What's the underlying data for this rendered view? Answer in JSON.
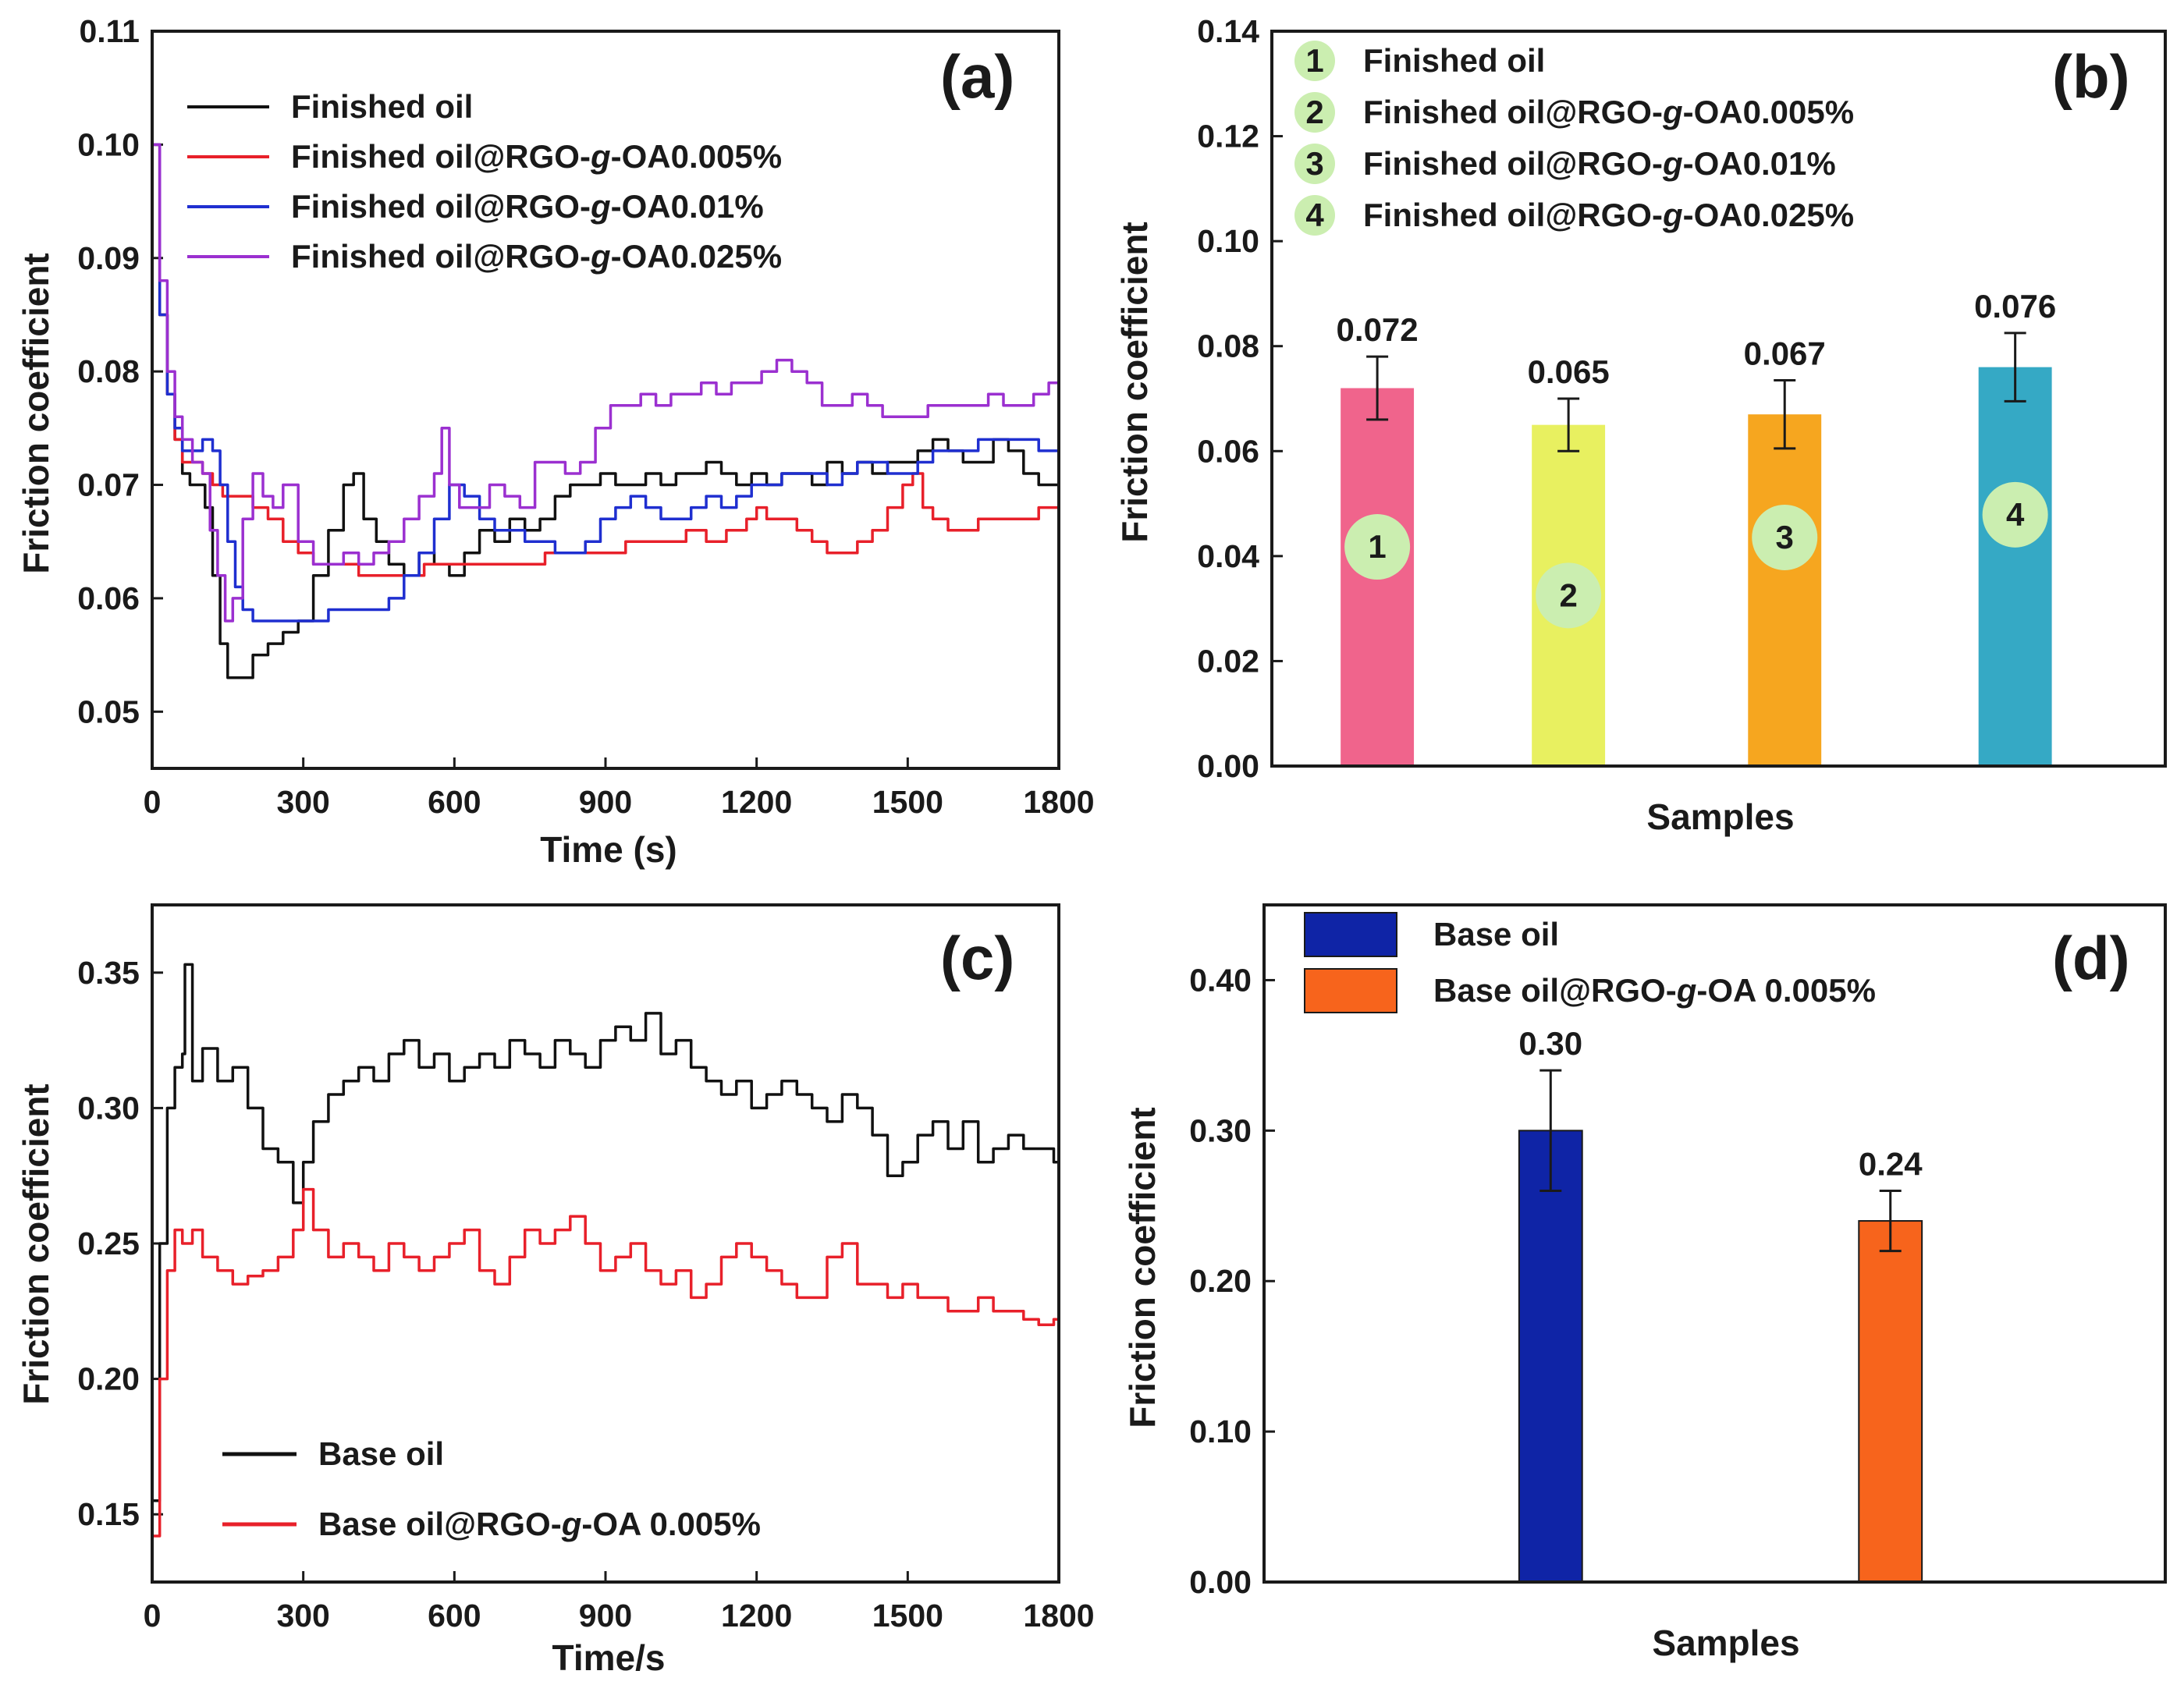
{
  "chart_data": [
    {
      "id": "a",
      "type": "line",
      "panel_label": "(a)",
      "xlabel": "Time (s)",
      "ylabel": "Friction coefficient",
      "xlim": [
        0,
        1800
      ],
      "ylim": [
        0.045,
        0.11
      ],
      "xticks": [
        "0",
        "300",
        "600",
        "900",
        "1200",
        "1500",
        "1800"
      ],
      "yticks": [
        "0.05",
        "0.06",
        "0.07",
        "0.08",
        "0.09",
        "0.10",
        "0.11"
      ],
      "legend_position": "top-left",
      "series": [
        {
          "name": "Finished oil",
          "color": "#111111",
          "x": [
            0,
            15,
            30,
            45,
            60,
            75,
            90,
            105,
            120,
            135,
            150,
            175,
            200,
            230,
            260,
            290,
            320,
            350,
            380,
            400,
            420,
            445,
            470,
            500,
            530,
            560,
            590,
            620,
            650,
            680,
            710,
            740,
            770,
            800,
            830,
            860,
            890,
            920,
            950,
            980,
            1010,
            1040,
            1070,
            1100,
            1130,
            1160,
            1190,
            1220,
            1250,
            1280,
            1310,
            1340,
            1370,
            1400,
            1430,
            1460,
            1490,
            1520,
            1550,
            1580,
            1610,
            1640,
            1670,
            1700,
            1730,
            1760,
            1790,
            1800
          ],
          "y": [
            0.1,
            0.085,
            0.078,
            0.074,
            0.071,
            0.07,
            0.07,
            0.068,
            0.062,
            0.056,
            0.053,
            0.053,
            0.055,
            0.056,
            0.057,
            0.058,
            0.062,
            0.066,
            0.07,
            0.071,
            0.067,
            0.065,
            0.063,
            0.062,
            0.064,
            0.063,
            0.062,
            0.064,
            0.066,
            0.065,
            0.067,
            0.066,
            0.067,
            0.069,
            0.07,
            0.07,
            0.071,
            0.07,
            0.07,
            0.071,
            0.07,
            0.071,
            0.071,
            0.072,
            0.071,
            0.07,
            0.071,
            0.07,
            0.071,
            0.071,
            0.07,
            0.072,
            0.071,
            0.072,
            0.071,
            0.072,
            0.072,
            0.073,
            0.074,
            0.073,
            0.072,
            0.072,
            0.074,
            0.073,
            0.071,
            0.07,
            0.07,
            0.07
          ]
        },
        {
          "name": "Finished oil@RGO-g-OA0.005%",
          "color": "#e8202a",
          "x": [
            0,
            15,
            30,
            45,
            60,
            80,
            100,
            120,
            140,
            160,
            180,
            200,
            230,
            260,
            290,
            320,
            350,
            380,
            410,
            440,
            470,
            500,
            540,
            580,
            620,
            660,
            700,
            740,
            780,
            820,
            860,
            900,
            940,
            980,
            1020,
            1060,
            1100,
            1140,
            1180,
            1200,
            1220,
            1250,
            1280,
            1310,
            1340,
            1370,
            1400,
            1430,
            1460,
            1490,
            1510,
            1530,
            1550,
            1580,
            1610,
            1640,
            1680,
            1720,
            1760,
            1800
          ],
          "y": [
            0.1,
            0.085,
            0.078,
            0.074,
            0.072,
            0.072,
            0.071,
            0.07,
            0.069,
            0.069,
            0.069,
            0.068,
            0.067,
            0.065,
            0.064,
            0.063,
            0.063,
            0.063,
            0.062,
            0.062,
            0.062,
            0.062,
            0.063,
            0.063,
            0.063,
            0.063,
            0.063,
            0.063,
            0.064,
            0.064,
            0.064,
            0.064,
            0.065,
            0.065,
            0.065,
            0.066,
            0.065,
            0.066,
            0.067,
            0.068,
            0.067,
            0.067,
            0.066,
            0.065,
            0.064,
            0.064,
            0.065,
            0.066,
            0.068,
            0.07,
            0.071,
            0.068,
            0.067,
            0.066,
            0.066,
            0.067,
            0.067,
            0.067,
            0.068,
            0.068
          ]
        },
        {
          "name": "Finished oil@RGO-g-OA0.01%",
          "color": "#1f2fd0",
          "x": [
            0,
            15,
            30,
            45,
            60,
            80,
            100,
            120,
            135,
            150,
            165,
            180,
            200,
            230,
            260,
            290,
            320,
            350,
            380,
            410,
            440,
            470,
            500,
            530,
            560,
            590,
            620,
            650,
            680,
            710,
            740,
            770,
            800,
            830,
            860,
            890,
            920,
            950,
            980,
            1010,
            1040,
            1070,
            1100,
            1130,
            1160,
            1190,
            1220,
            1250,
            1280,
            1310,
            1340,
            1370,
            1400,
            1430,
            1460,
            1490,
            1520,
            1550,
            1580,
            1610,
            1640,
            1670,
            1700,
            1730,
            1760,
            1790,
            1800
          ],
          "y": [
            0.1,
            0.085,
            0.078,
            0.075,
            0.073,
            0.073,
            0.074,
            0.073,
            0.07,
            0.065,
            0.061,
            0.059,
            0.058,
            0.058,
            0.058,
            0.058,
            0.058,
            0.059,
            0.059,
            0.059,
            0.059,
            0.06,
            0.062,
            0.064,
            0.067,
            0.07,
            0.069,
            0.067,
            0.066,
            0.066,
            0.065,
            0.065,
            0.064,
            0.064,
            0.065,
            0.067,
            0.068,
            0.069,
            0.068,
            0.067,
            0.067,
            0.068,
            0.069,
            0.068,
            0.069,
            0.07,
            0.07,
            0.071,
            0.071,
            0.071,
            0.07,
            0.071,
            0.072,
            0.072,
            0.071,
            0.071,
            0.072,
            0.073,
            0.073,
            0.073,
            0.074,
            0.074,
            0.074,
            0.074,
            0.073,
            0.073,
            0.073
          ]
        },
        {
          "name": "Finished oil@RGO-g-OA0.025%",
          "color": "#9b30d0",
          "x": [
            0,
            15,
            30,
            45,
            60,
            80,
            100,
            115,
            130,
            145,
            160,
            180,
            200,
            220,
            240,
            260,
            290,
            320,
            350,
            380,
            410,
            440,
            470,
            500,
            530,
            560,
            575,
            590,
            610,
            640,
            670,
            700,
            730,
            760,
            790,
            820,
            850,
            880,
            910,
            940,
            970,
            1000,
            1030,
            1060,
            1090,
            1120,
            1150,
            1180,
            1210,
            1240,
            1270,
            1300,
            1330,
            1360,
            1390,
            1420,
            1450,
            1480,
            1510,
            1540,
            1570,
            1600,
            1630,
            1660,
            1690,
            1720,
            1750,
            1780,
            1800
          ],
          "y": [
            0.1,
            0.088,
            0.08,
            0.076,
            0.074,
            0.072,
            0.071,
            0.066,
            0.062,
            0.058,
            0.06,
            0.067,
            0.071,
            0.069,
            0.068,
            0.07,
            0.065,
            0.063,
            0.063,
            0.064,
            0.063,
            0.064,
            0.065,
            0.067,
            0.069,
            0.071,
            0.075,
            0.07,
            0.068,
            0.068,
            0.07,
            0.069,
            0.068,
            0.072,
            0.072,
            0.071,
            0.072,
            0.075,
            0.077,
            0.077,
            0.078,
            0.077,
            0.078,
            0.078,
            0.079,
            0.078,
            0.079,
            0.079,
            0.08,
            0.081,
            0.08,
            0.079,
            0.077,
            0.077,
            0.078,
            0.077,
            0.076,
            0.076,
            0.076,
            0.077,
            0.077,
            0.077,
            0.077,
            0.078,
            0.077,
            0.077,
            0.078,
            0.079,
            0.078
          ]
        }
      ]
    },
    {
      "id": "b",
      "type": "bar",
      "panel_label": "(b)",
      "xlabel": "Samples",
      "ylabel": "Friction coefficient",
      "ylim": [
        0,
        0.14
      ],
      "yticks": [
        "0.00",
        "0.02",
        "0.04",
        "0.06",
        "0.08",
        "0.10",
        "0.12",
        "0.14"
      ],
      "categories": [
        "1",
        "2",
        "3",
        "4"
      ],
      "values": [
        0.072,
        0.065,
        0.067,
        0.076
      ],
      "errors": [
        0.006,
        0.005,
        0.0065,
        0.0065
      ],
      "value_labels": [
        "0.072",
        "0.065",
        "0.067",
        "0.076"
      ],
      "colors": [
        "#f0648c",
        "#e8f060",
        "#f6a61f",
        "#35a9c5"
      ],
      "marker_fractions": [
        0.58,
        0.5,
        0.65,
        0.63
      ],
      "legend_position": "top-left",
      "legend": [
        {
          "num": "1",
          "label": "Finished oil"
        },
        {
          "num": "2",
          "label": "Finished oil@RGO-g-OA0.005%"
        },
        {
          "num": "3",
          "label": "Finished oil@RGO-g-OA0.01%"
        },
        {
          "num": "4",
          "label": "Finished oil@RGO-g-OA0.025%"
        }
      ],
      "marker_color": "#cbeeb0"
    },
    {
      "id": "c",
      "type": "line",
      "panel_label": "(c)",
      "xlabel": "Time/s",
      "ylabel": "Friction coefficient",
      "xlim": [
        0,
        1800
      ],
      "ylim": [
        0.125,
        0.375
      ],
      "xticks": [
        "0",
        "300",
        "600",
        "900",
        "1200",
        "1500",
        "1800"
      ],
      "yticks": [
        "0.15",
        "0.20",
        "0.25",
        "0.30",
        "0.35"
      ],
      "legend_position": "bottom-left",
      "series": [
        {
          "name": "Base oil",
          "color": "#111111",
          "x": [
            0,
            15,
            30,
            45,
            60,
            65,
            80,
            100,
            130,
            160,
            190,
            220,
            250,
            280,
            300,
            320,
            350,
            380,
            410,
            440,
            470,
            500,
            530,
            560,
            590,
            620,
            650,
            680,
            710,
            740,
            770,
            800,
            830,
            860,
            890,
            920,
            950,
            980,
            1010,
            1040,
            1070,
            1100,
            1130,
            1160,
            1190,
            1220,
            1250,
            1280,
            1310,
            1340,
            1370,
            1400,
            1430,
            1460,
            1490,
            1520,
            1550,
            1580,
            1610,
            1640,
            1670,
            1700,
            1730,
            1760,
            1790,
            1800
          ],
          "y": [
            0.155,
            0.25,
            0.3,
            0.315,
            0.32,
            0.353,
            0.31,
            0.322,
            0.31,
            0.315,
            0.3,
            0.285,
            0.28,
            0.265,
            0.28,
            0.295,
            0.305,
            0.31,
            0.315,
            0.31,
            0.32,
            0.325,
            0.315,
            0.32,
            0.31,
            0.315,
            0.32,
            0.315,
            0.325,
            0.32,
            0.315,
            0.325,
            0.32,
            0.315,
            0.325,
            0.33,
            0.325,
            0.335,
            0.32,
            0.325,
            0.315,
            0.31,
            0.305,
            0.31,
            0.3,
            0.305,
            0.31,
            0.305,
            0.3,
            0.295,
            0.305,
            0.3,
            0.29,
            0.275,
            0.28,
            0.29,
            0.295,
            0.285,
            0.295,
            0.28,
            0.285,
            0.29,
            0.285,
            0.285,
            0.28,
            0.275
          ]
        },
        {
          "name": "Base oil@RGO-g-OA 0.005%",
          "color": "#e8202a",
          "x": [
            0,
            15,
            30,
            45,
            60,
            80,
            100,
            130,
            160,
            190,
            220,
            250,
            280,
            300,
            320,
            350,
            380,
            410,
            440,
            470,
            500,
            530,
            560,
            590,
            620,
            650,
            680,
            710,
            740,
            770,
            800,
            830,
            860,
            890,
            920,
            950,
            980,
            1010,
            1040,
            1070,
            1100,
            1130,
            1160,
            1190,
            1220,
            1250,
            1280,
            1310,
            1340,
            1370,
            1400,
            1430,
            1460,
            1490,
            1520,
            1550,
            1580,
            1610,
            1640,
            1670,
            1700,
            1730,
            1760,
            1790,
            1800
          ],
          "y": [
            0.142,
            0.2,
            0.24,
            0.255,
            0.25,
            0.255,
            0.245,
            0.24,
            0.235,
            0.238,
            0.24,
            0.245,
            0.255,
            0.27,
            0.255,
            0.245,
            0.25,
            0.245,
            0.24,
            0.25,
            0.245,
            0.24,
            0.245,
            0.25,
            0.255,
            0.24,
            0.235,
            0.245,
            0.255,
            0.25,
            0.255,
            0.26,
            0.25,
            0.24,
            0.245,
            0.25,
            0.24,
            0.235,
            0.24,
            0.23,
            0.235,
            0.245,
            0.25,
            0.245,
            0.24,
            0.235,
            0.23,
            0.23,
            0.245,
            0.25,
            0.235,
            0.235,
            0.23,
            0.235,
            0.23,
            0.23,
            0.225,
            0.225,
            0.23,
            0.225,
            0.225,
            0.222,
            0.22,
            0.222,
            0.218
          ]
        }
      ]
    },
    {
      "id": "d",
      "type": "bar",
      "panel_label": "(d)",
      "xlabel": "Samples",
      "ylabel": "Friction coefficient",
      "ylim": [
        0,
        0.45
      ],
      "yticks": [
        "0.00",
        "0.10",
        "0.20",
        "0.30",
        "0.40"
      ],
      "categories": [
        "Base oil",
        "Base oil@RGO-g-OA 0.005%"
      ],
      "values": [
        0.3,
        0.24
      ],
      "errors": [
        0.04,
        0.02
      ],
      "value_labels": [
        "0.30",
        "0.24"
      ],
      "colors": [
        "#0f24a6",
        "#f7641c"
      ],
      "legend_position": "top-left",
      "legend": [
        {
          "label": "Base oil"
        },
        {
          "label": "Base oil@RGO-g-OA 0.005%"
        }
      ]
    }
  ]
}
